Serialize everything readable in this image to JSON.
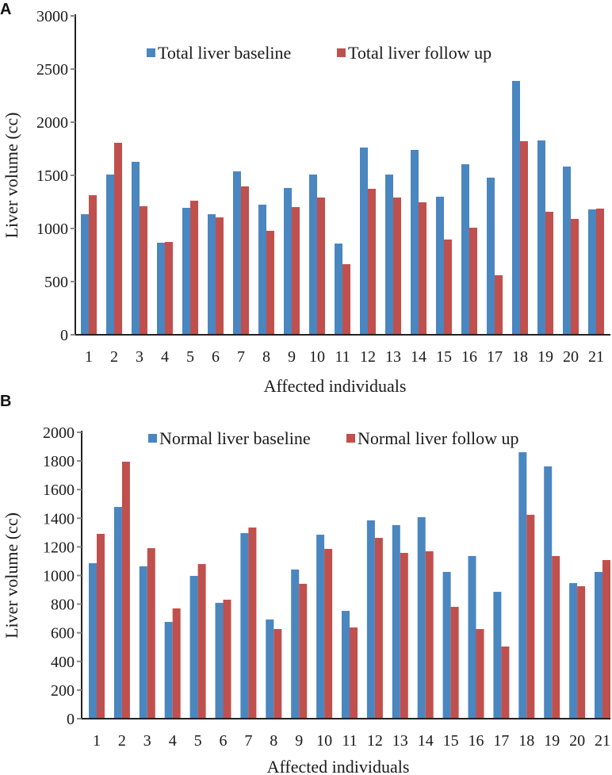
{
  "chart_data": [
    {
      "panel_label": "A",
      "type": "bar",
      "xlabel": "Affected individuals",
      "ylabel": "Liver volume (cc)",
      "ylim": [
        0,
        3000
      ],
      "yticks": [
        0,
        500,
        1000,
        1500,
        2000,
        2500,
        3000
      ],
      "grid": false,
      "legend_position": "top-center",
      "categories": [
        "1",
        "2",
        "3",
        "4",
        "5",
        "6",
        "7",
        "8",
        "9",
        "10",
        "11",
        "12",
        "13",
        "14",
        "15",
        "16",
        "17",
        "18",
        "19",
        "20",
        "21"
      ],
      "series": [
        {
          "name": "Total liver baseline",
          "color": "#4a86c0",
          "values": [
            1134,
            1507,
            1627,
            866,
            1194,
            1134,
            1537,
            1224,
            1381,
            1507,
            858,
            1761,
            1507,
            1739,
            1299,
            1604,
            1478,
            2388,
            1828,
            1582,
            1179
          ]
        },
        {
          "name": "Total liver follow up",
          "color": "#c0504d",
          "values": [
            1313,
            1806,
            1209,
            873,
            1261,
            1104,
            1396,
            978,
            1201,
            1291,
            664,
            1373,
            1291,
            1246,
            896,
            1007,
            560,
            1821,
            1157,
            1090,
            1187
          ]
        }
      ]
    },
    {
      "panel_label": "B",
      "type": "bar",
      "xlabel": "Affected individuals",
      "ylabel": "Liver volume (cc)",
      "ylim": [
        0,
        2000
      ],
      "yticks": [
        0,
        200,
        400,
        600,
        800,
        1000,
        1200,
        1400,
        1600,
        1800,
        2000
      ],
      "grid": false,
      "legend_position": "top-center",
      "categories": [
        "1",
        "2",
        "3",
        "4",
        "5",
        "6",
        "7",
        "8",
        "9",
        "10",
        "11",
        "12",
        "13",
        "14",
        "15",
        "16",
        "17",
        "18",
        "19",
        "20",
        "21"
      ],
      "series": [
        {
          "name": "Normal liver baseline",
          "color": "#4a86c0",
          "values": [
            1086,
            1479,
            1064,
            676,
            997,
            809,
            1296,
            693,
            1042,
            1285,
            753,
            1385,
            1352,
            1407,
            1025,
            1136,
            886,
            1861,
            1762,
            947,
            1025
          ]
        },
        {
          "name": "Normal liver follow up",
          "color": "#c0504d",
          "values": [
            1291,
            1795,
            1191,
            770,
            1080,
            831,
            1335,
            626,
            942,
            1186,
            637,
            1263,
            1158,
            1169,
            781,
            626,
            504,
            1424,
            1136,
            925,
            1108
          ]
        }
      ]
    }
  ]
}
